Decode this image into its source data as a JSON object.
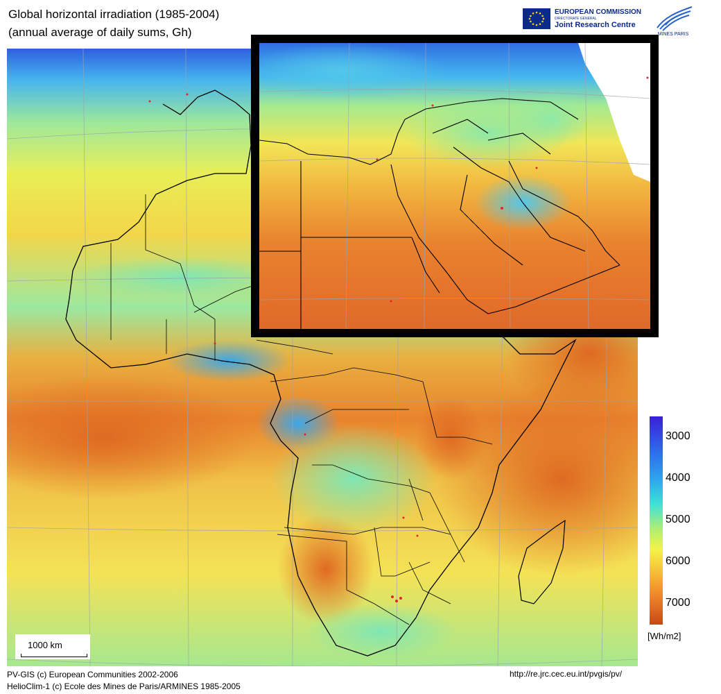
{
  "title": {
    "line1": "Global horizontal irradiation (1985-2004)",
    "line2": "(annual average of daily sums, Gh)"
  },
  "logos": {
    "ec_line1": "EUROPEAN COMMISSION",
    "ec_line2": "DIRECTORATE GENERAL",
    "ec_line3": "Joint Research Centre",
    "mines": "MINES PARIS"
  },
  "legend": {
    "ticks": [
      "3000",
      "4000",
      "5000",
      "6000",
      "7000"
    ],
    "unit": "[Wh/m2]",
    "colors": [
      "#3b1fd6",
      "#2ea4ef",
      "#3fe0d7",
      "#f4f24a",
      "#f0862a",
      "#c94716"
    ]
  },
  "scalebar": {
    "label": "1000 km"
  },
  "footer": {
    "left_line1": "PV-GIS (c) European Communities 2002-2006",
    "left_line2": "HelioClim-1 (c) Ecole des Mines de Paris/ARMINES 1985-2005",
    "right": "http://re.jrc.cec.eu.int/pvgis/pv/"
  }
}
